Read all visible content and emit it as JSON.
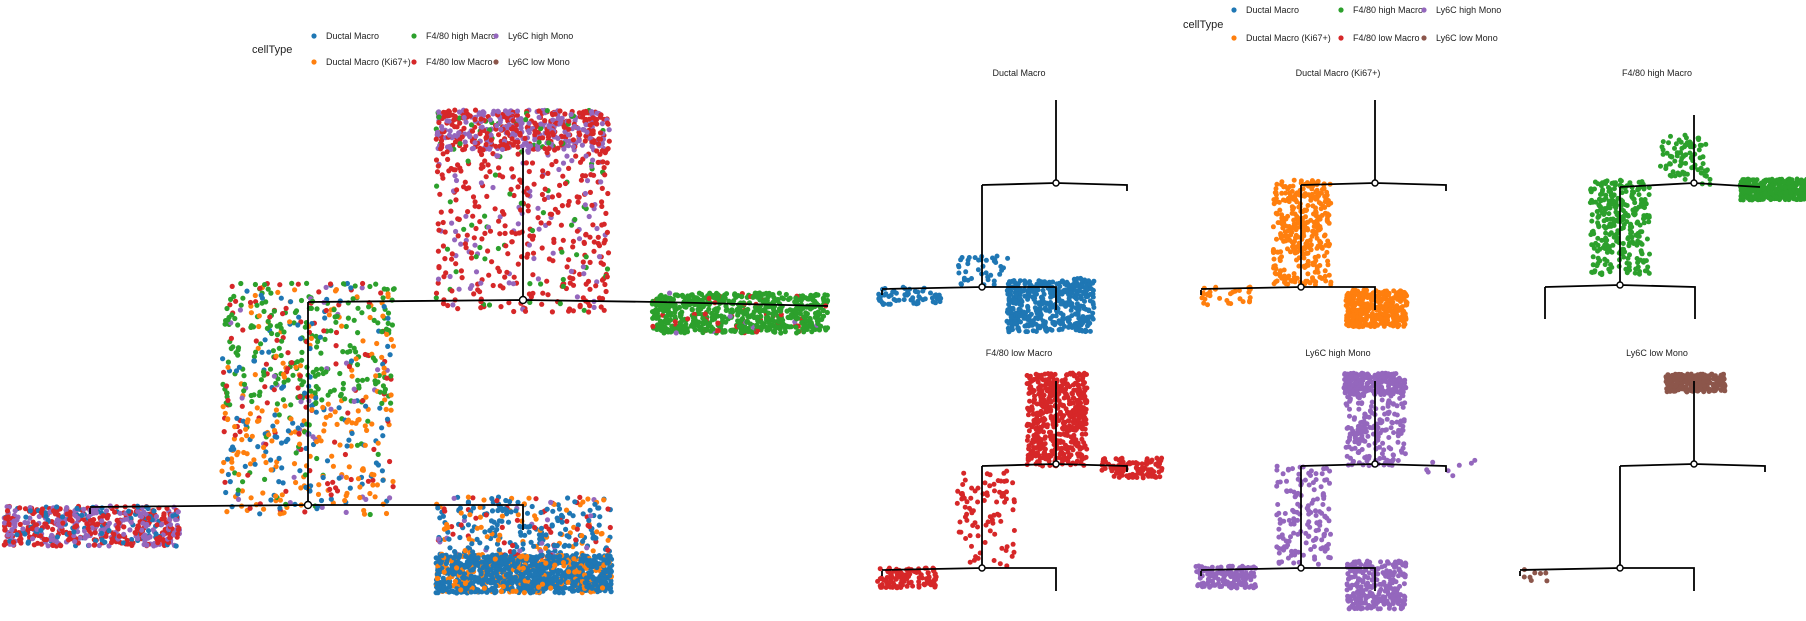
{
  "chart_data": {
    "type": "scatter",
    "description_free": true,
    "legend": {
      "title": "cellType",
      "placement": "top",
      "entries": [
        {
          "label": "Ductal Macro",
          "color": "#1f77b4"
        },
        {
          "label": "Ductal Macro (Ki67+)",
          "color": "#ff7f0e"
        },
        {
          "label": "F4/80 high Macro",
          "color": "#2ca02c"
        },
        {
          "label": "F4/80 low Macro",
          "color": "#d62728"
        },
        {
          "label": "Ly6C high Mono",
          "color": "#9467bd"
        },
        {
          "label": "Ly6C low Mono",
          "color": "#8c564b"
        }
      ]
    },
    "main_plot": {
      "title": "",
      "legend_entries": [
        0,
        1,
        2,
        3,
        4
      ],
      "axes_visible": false,
      "grid": false
    },
    "panels": [
      {
        "title": "Ductal Macro",
        "color": "#1f77b4"
      },
      {
        "title": "Ductal Macro (Ki67+)",
        "color": "#ff7f0e"
      },
      {
        "title": "F4/80 high Macro",
        "color": "#2ca02c"
      },
      {
        "title": "F4/80 low Macro",
        "color": "#d62728"
      },
      {
        "title": "Ly6C high Mono",
        "color": "#9467bd"
      },
      {
        "title": "Ly6C low Mono",
        "color": "#8c564b"
      }
    ]
  }
}
